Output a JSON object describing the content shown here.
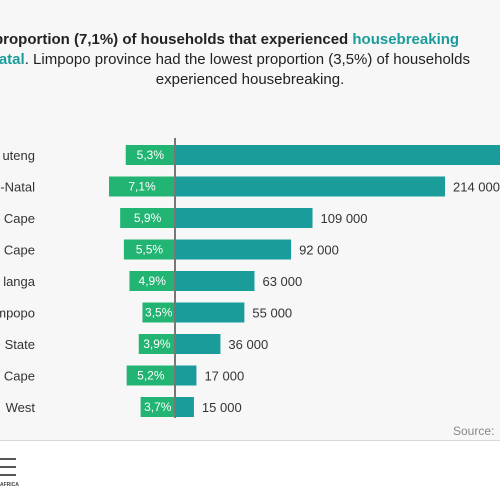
{
  "title": {
    "line1_pre": " proportion (7,1%) of households that experienced ",
    "line1_hl": "housebreaking",
    "line2_hl": "Natal",
    "line2_rest": ". Limpopo province had the lowest proportion (3,5%) of households",
    "line3": "experienced housebreaking."
  },
  "source_label": "Source:",
  "logo_text": "AFRICA",
  "colors": {
    "proportion_bar": "#22b472",
    "count_bar": "#1a9c9a",
    "axis_line": "#777777",
    "highlight_text": "#1a9c9a"
  },
  "chart_data": {
    "type": "bar",
    "orientation": "horizontal",
    "categories": [
      "uteng",
      "-Natal",
      "Cape",
      "Cape",
      "langa",
      "mpopo",
      "State",
      "Cape",
      "West"
    ],
    "series": [
      {
        "values": [
          5.3,
          7.1,
          5.9,
          5.5,
          4.9,
          3.5,
          3.9,
          5.2,
          3.7
        ],
        "labels": [
          "5,3%",
          "7,1%",
          "5,9%",
          "5,5%",
          "4,9%",
          "3,5%",
          "3,9%",
          "5,2%",
          "3,7%"
        ]
      },
      {
        "values": [
          null,
          214000,
          109000,
          92000,
          63000,
          55000,
          36000,
          17000,
          15000
        ],
        "labels": [
          "",
          "214 000",
          "109 000",
          "92 000",
          "63 000",
          "55 000",
          "36 000",
          "17 000",
          "15 000"
        ]
      }
    ],
    "notes": "Back-to-back bars: proportions extend left of the centre axis, counts extend right. First row's count bar runs past the visible edge."
  }
}
